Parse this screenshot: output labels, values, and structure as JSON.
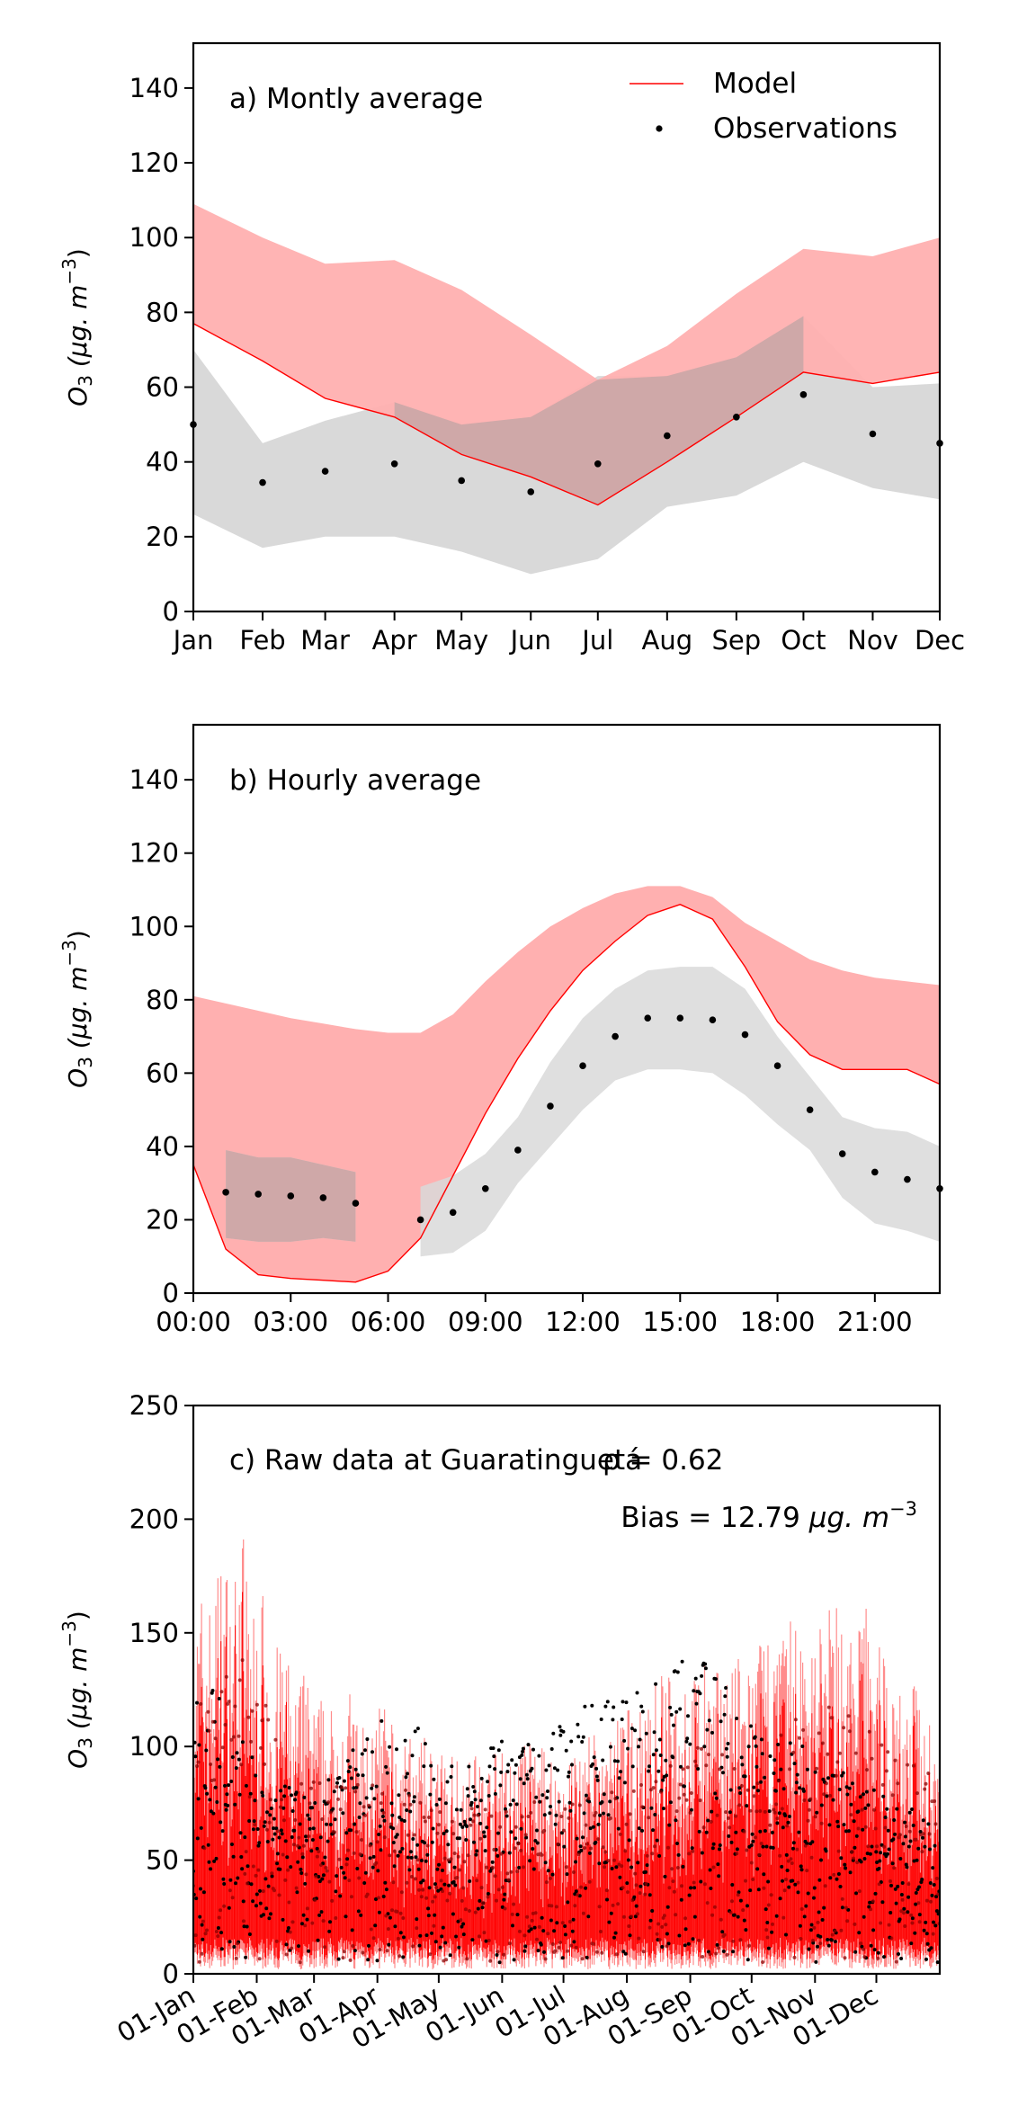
{
  "chart_data": [
    {
      "type": "line",
      "panel": "a",
      "annotation": "a) Montly average",
      "ylabel_base": "O",
      "ylabel_sub": "3",
      "ylabel_units": " (μg. m",
      "ylabel_sup": "−3",
      "ylabel_close": ")",
      "categories": [
        "Jan",
        "Feb",
        "Mar",
        "Apr",
        "May",
        "Jun",
        "Jul",
        "Aug",
        "Sep",
        "Oct",
        "Nov",
        "Dec"
      ],
      "x_days": [
        1,
        32,
        60,
        91,
        121,
        152,
        182,
        213,
        244,
        274,
        305,
        335
      ],
      "xlim": [
        1,
        335
      ],
      "ylim": [
        0,
        152
      ],
      "yticks": [
        0,
        20,
        40,
        60,
        80,
        100,
        120,
        140
      ],
      "legend": {
        "position": "top-right",
        "model_label": "Model",
        "obs_label": "Observations"
      },
      "model": {
        "mean": [
          77,
          67,
          57,
          52,
          42,
          36,
          28.5,
          40,
          52,
          64,
          61,
          64
        ],
        "upper": [
          109,
          100,
          93,
          94,
          86,
          74,
          62,
          71,
          85,
          97,
          95,
          100
        ],
        "lower": [
          77,
          67,
          57,
          52,
          42,
          36,
          28.5,
          40,
          52,
          64,
          61,
          64
        ]
      },
      "observations": {
        "mean": [
          50,
          34.5,
          37.5,
          39.5,
          35,
          32,
          39.5,
          47,
          52,
          58,
          47.5,
          45
        ],
        "upper": [
          70,
          45,
          51,
          56,
          50,
          52,
          63,
          63,
          68,
          79,
          60,
          61
        ],
        "lower": [
          26,
          17,
          20,
          20,
          16,
          10,
          14,
          28,
          31,
          40,
          33,
          30
        ]
      },
      "colors": {
        "model_line": "#ff0000",
        "model_band": "#ffb0b0",
        "obs_band": "#d9d9d9",
        "obs_points": "#000000",
        "overlap": "#cfa8a8"
      }
    },
    {
      "type": "line",
      "panel": "b",
      "annotation": "b) Hourly average",
      "ylabel_base": "O",
      "ylabel_sub": "3",
      "ylabel_units": " (μg. m",
      "ylabel_sup": "−3",
      "ylabel_close": ")",
      "xlim": [
        0,
        23
      ],
      "ylim": [
        0,
        155
      ],
      "yticks": [
        0,
        20,
        40,
        60,
        80,
        100,
        120,
        140
      ],
      "xticks": [
        0,
        3,
        6,
        9,
        12,
        15,
        18,
        21
      ],
      "xtick_labels": [
        "00:00",
        "03:00",
        "06:00",
        "09:00",
        "12:00",
        "15:00",
        "18:00",
        "21:00"
      ],
      "hours": [
        0,
        1,
        2,
        3,
        4,
        5,
        6,
        7,
        8,
        9,
        10,
        11,
        12,
        13,
        14,
        15,
        16,
        17,
        18,
        19,
        20,
        21,
        22,
        23
      ],
      "model": {
        "mean": [
          35,
          12,
          5,
          4,
          3.5,
          3,
          6,
          15,
          32,
          49,
          64,
          77,
          88,
          96,
          103,
          106,
          102,
          89,
          74,
          65,
          61,
          61,
          61,
          57
        ],
        "upper": [
          81,
          79,
          77,
          75,
          73.5,
          72,
          71,
          71,
          76,
          85,
          93,
          100,
          105,
          109,
          111,
          111,
          108,
          101,
          96,
          91,
          88,
          86,
          85,
          84
        ],
        "lower": [
          35,
          12,
          5,
          4,
          3.5,
          3,
          6,
          15,
          32,
          49,
          64,
          77,
          88,
          96,
          103,
          106,
          102,
          89,
          74,
          65,
          61,
          61,
          61,
          57
        ]
      },
      "observations": {
        "hours": [
          1,
          2,
          3,
          4,
          5,
          7,
          8,
          9,
          10,
          11,
          12,
          13,
          14,
          15,
          16,
          17,
          18,
          19,
          20,
          21,
          22,
          23
        ],
        "mean": [
          27.5,
          27,
          26.5,
          26,
          24.5,
          20,
          22,
          28.5,
          39,
          51,
          62,
          70,
          75,
          75,
          74.5,
          70.5,
          62,
          50,
          38,
          33,
          31,
          28.5
        ],
        "band_segments": [
          {
            "hours": [
              1,
              2,
              3,
              4,
              5
            ],
            "upper": [
              39,
              37,
              37,
              35,
              33
            ],
            "lower": [
              15,
              14,
              14,
              15,
              14
            ]
          },
          {
            "hours": [
              7,
              8,
              9,
              10,
              11,
              12,
              13,
              14,
              15,
              16,
              17,
              18,
              19,
              20,
              21,
              22,
              23
            ],
            "upper": [
              29,
              32,
              38,
              48,
              63,
              75,
              83,
              88,
              89,
              89,
              83,
              70,
              59,
              48,
              45,
              44,
              40
            ],
            "lower": [
              10,
              11,
              17,
              30,
              40,
              50,
              58,
              61,
              61,
              60,
              54,
              46,
              39,
              26,
              19,
              17,
              14
            ]
          }
        ]
      },
      "colors": {
        "model_line": "#ff0000",
        "model_band": "#ffb0b0",
        "obs_band": "#d9d9d9",
        "obs_points": "#000000",
        "overlap": "#cfa8a8"
      }
    },
    {
      "type": "line",
      "panel": "c",
      "annotation": "c) Raw data at Guaratinguetá",
      "stat_r": "ρ = 0.62",
      "stat_bias_prefix": "Bias = 12.79 ",
      "stat_bias_units": "μg. m",
      "stat_bias_sup": "−3",
      "ylabel_base": "O",
      "ylabel_sub": "3",
      "ylabel_units": " (μg. m",
      "ylabel_sup": "−3",
      "ylabel_close": ")",
      "xlim": [
        "01-Jan",
        "31-Dec"
      ],
      "ylim": [
        0,
        250
      ],
      "yticks": [
        0,
        50,
        100,
        150,
        200,
        250
      ],
      "xtick_labels": [
        "01-Jan",
        "01-Feb",
        "01-Mar",
        "01-Apr",
        "01-May",
        "01-Jun",
        "01-Jul",
        "01-Aug",
        "01-Sep",
        "01-Oct",
        "01-Nov",
        "01-Dec"
      ],
      "xtick_days": [
        1,
        32,
        60,
        91,
        121,
        152,
        182,
        213,
        244,
        274,
        305,
        335
      ],
      "model_daily_peak": [
        [
          1,
          150
        ],
        [
          5,
          170
        ],
        [
          10,
          165
        ],
        [
          15,
          190
        ],
        [
          20,
          175
        ],
        [
          25,
          200
        ],
        [
          30,
          160
        ],
        [
          35,
          170
        ],
        [
          40,
          140
        ],
        [
          45,
          150
        ],
        [
          50,
          125
        ],
        [
          55,
          135
        ],
        [
          60,
          120
        ],
        [
          65,
          125
        ],
        [
          70,
          115
        ],
        [
          75,
          130
        ],
        [
          80,
          120
        ],
        [
          85,
          110
        ],
        [
          90,
          115
        ],
        [
          95,
          120
        ],
        [
          100,
          105
        ],
        [
          105,
          110
        ],
        [
          110,
          100
        ],
        [
          115,
          105
        ],
        [
          120,
          100
        ],
        [
          125,
          95
        ],
        [
          130,
          105
        ],
        [
          135,
          95
        ],
        [
          140,
          100
        ],
        [
          145,
          95
        ],
        [
          150,
          100
        ],
        [
          155,
          95
        ],
        [
          160,
          100
        ],
        [
          165,
          105
        ],
        [
          170,
          100
        ],
        [
          175,
          100
        ],
        [
          180,
          95
        ],
        [
          185,
          100
        ],
        [
          190,
          105
        ],
        [
          195,
          110
        ],
        [
          200,
          100
        ],
        [
          205,
          110
        ],
        [
          210,
          115
        ],
        [
          215,
          120
        ],
        [
          220,
          115
        ],
        [
          225,
          125
        ],
        [
          230,
          135
        ],
        [
          235,
          130
        ],
        [
          240,
          125
        ],
        [
          245,
          135
        ],
        [
          250,
          140
        ],
        [
          255,
          130
        ],
        [
          260,
          140
        ],
        [
          265,
          145
        ],
        [
          270,
          135
        ],
        [
          275,
          140
        ],
        [
          280,
          150
        ],
        [
          285,
          145
        ],
        [
          290,
          155
        ],
        [
          295,
          160
        ],
        [
          300,
          150
        ],
        [
          305,
          165
        ],
        [
          310,
          155
        ],
        [
          315,
          170
        ],
        [
          320,
          160
        ],
        [
          325,
          150
        ],
        [
          330,
          175
        ],
        [
          335,
          150
        ],
        [
          340,
          140
        ],
        [
          345,
          135
        ],
        [
          350,
          125
        ],
        [
          355,
          130
        ],
        [
          360,
          120
        ],
        [
          365,
          110
        ]
      ],
      "obs_daily_peak": [
        [
          1,
          120
        ],
        [
          10,
          128
        ],
        [
          20,
          110
        ],
        [
          30,
          95
        ],
        [
          40,
          80
        ],
        [
          50,
          85
        ],
        [
          60,
          75
        ],
        [
          70,
          90
        ],
        [
          80,
          100
        ],
        [
          90,
          115
        ],
        [
          100,
          105
        ],
        [
          110,
          110
        ],
        [
          120,
          95
        ],
        [
          130,
          90
        ],
        [
          140,
          100
        ],
        [
          150,
          105
        ],
        [
          160,
          100
        ],
        [
          170,
          105
        ],
        [
          180,
          110
        ],
        [
          190,
          120
        ],
        [
          200,
          125
        ],
        [
          210,
          120
        ],
        [
          220,
          125
        ],
        [
          230,
          130
        ],
        [
          240,
          140
        ],
        [
          245,
          145
        ],
        [
          250,
          142
        ],
        [
          255,
          135
        ],
        [
          260,
          130
        ],
        [
          270,
          115
        ],
        [
          280,
          110
        ],
        [
          290,
          105
        ],
        [
          300,
          100
        ],
        [
          310,
          95
        ],
        [
          320,
          90
        ],
        [
          330,
          85
        ],
        [
          340,
          80
        ],
        [
          350,
          75
        ],
        [
          360,
          70
        ],
        [
          365,
          65
        ]
      ],
      "colors": {
        "model_line": "#ff0000",
        "model_band": "#ff8080",
        "obs_points": "#000000",
        "overlap": "#8b0000"
      }
    }
  ]
}
